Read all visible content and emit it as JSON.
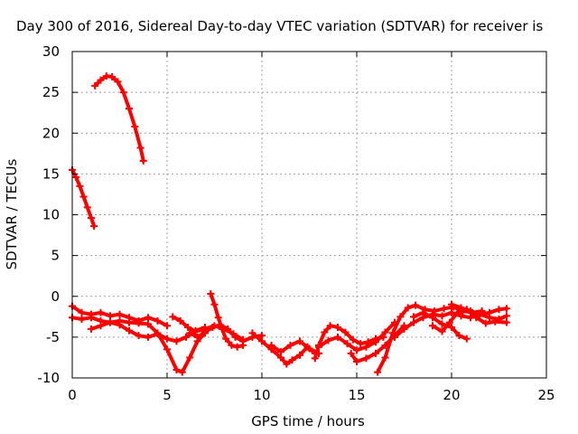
{
  "chart_data": {
    "type": "scatter",
    "title": "Day 300 of 2016, Sidereal Day-to-day VTEC variation (SDTVAR) for receiver is",
    "xlabel": "GPS time / hours",
    "ylabel": "SDTVAR / TECUs",
    "xlim": [
      0,
      25
    ],
    "ylim": [
      -10,
      30
    ],
    "xticks": [
      0,
      5,
      10,
      15,
      20,
      25
    ],
    "yticks": [
      -10,
      -5,
      0,
      5,
      10,
      15,
      20,
      25,
      30
    ],
    "grid": true,
    "point_marker": "plus",
    "series_color": "#ff0000",
    "series": [
      {
        "values": [
          [
            1.2,
            25.8
          ],
          [
            1.5,
            26.5
          ],
          [
            1.8,
            27.0
          ],
          [
            2.1,
            26.9
          ],
          [
            2.4,
            26.3
          ],
          [
            2.7,
            25.0
          ],
          [
            3.0,
            23.0
          ],
          [
            3.3,
            20.8
          ],
          [
            3.6,
            18.2
          ],
          [
            3.75,
            16.6
          ]
        ]
      },
      {
        "values": [
          [
            0.0,
            15.5
          ],
          [
            0.2,
            14.6
          ],
          [
            0.4,
            13.5
          ],
          [
            0.6,
            12.2
          ],
          [
            0.8,
            10.9
          ],
          [
            1.0,
            9.6
          ],
          [
            1.15,
            8.6
          ]
        ]
      },
      {
        "values": [
          [
            0.0,
            -1.2
          ],
          [
            0.5,
            -2.0
          ],
          [
            1.0,
            -2.2
          ],
          [
            1.5,
            -2.0
          ],
          [
            2.0,
            -2.4
          ],
          [
            2.5,
            -2.2
          ],
          [
            3.0,
            -2.6
          ],
          [
            3.5,
            -3.0
          ],
          [
            4.0,
            -2.6
          ],
          [
            4.5,
            -3.0
          ],
          [
            5.0,
            -3.6
          ]
        ]
      },
      {
        "values": [
          [
            0.0,
            -2.6
          ],
          [
            0.5,
            -2.8
          ],
          [
            1.0,
            -2.6
          ],
          [
            1.5,
            -3.0
          ],
          [
            2.0,
            -3.2
          ],
          [
            2.5,
            -3.0
          ],
          [
            3.0,
            -3.2
          ],
          [
            3.5,
            -3.3
          ],
          [
            4.0,
            -3.4
          ],
          [
            4.5,
            -4.5
          ],
          [
            5.0,
            -6.5
          ],
          [
            5.5,
            -9.0
          ],
          [
            5.8,
            -9.3
          ],
          [
            6.2,
            -7.5
          ],
          [
            6.6,
            -5.5
          ],
          [
            7.0,
            -4.5
          ]
        ]
      },
      {
        "values": [
          [
            1.0,
            -4.0
          ],
          [
            1.5,
            -3.6
          ],
          [
            2.0,
            -3.2
          ],
          [
            2.5,
            -3.5
          ],
          [
            3.0,
            -4.2
          ],
          [
            3.5,
            -4.8
          ],
          [
            4.0,
            -5.0
          ],
          [
            4.5,
            -4.6
          ],
          [
            5.0,
            -5.2
          ],
          [
            5.5,
            -5.5
          ],
          [
            6.0,
            -5.0
          ],
          [
            6.5,
            -4.2
          ],
          [
            7.0,
            -3.8
          ]
        ]
      },
      {
        "values": [
          [
            5.3,
            -2.5
          ],
          [
            5.7,
            -3.0
          ],
          [
            6.1,
            -3.8
          ],
          [
            6.5,
            -4.3
          ],
          [
            7.0,
            -4.0
          ],
          [
            7.5,
            -3.6
          ],
          [
            8.0,
            -4.0
          ],
          [
            8.5,
            -4.6
          ],
          [
            9.0,
            -5.3
          ]
        ]
      },
      {
        "values": [
          [
            7.3,
            0.3
          ],
          [
            7.5,
            -1.0
          ],
          [
            7.7,
            -2.6
          ],
          [
            7.9,
            -4.0
          ],
          [
            8.1,
            -5.2
          ],
          [
            8.4,
            -6.0
          ],
          [
            8.7,
            -6.2
          ],
          [
            9.0,
            -6.0
          ]
        ]
      },
      {
        "values": [
          [
            6.2,
            -4.5
          ],
          [
            6.6,
            -5.0
          ],
          [
            7.0,
            -4.4
          ],
          [
            7.4,
            -3.8
          ],
          [
            7.8,
            -3.5
          ],
          [
            8.2,
            -4.0
          ],
          [
            8.6,
            -5.0
          ],
          [
            9.0,
            -5.5
          ],
          [
            9.5,
            -5.0
          ],
          [
            10.0,
            -4.8
          ]
        ]
      },
      {
        "values": [
          [
            9.5,
            -4.5
          ],
          [
            10.0,
            -5.5
          ],
          [
            10.5,
            -6.5
          ],
          [
            11.0,
            -7.5
          ],
          [
            11.3,
            -8.3
          ],
          [
            11.6,
            -7.8
          ],
          [
            12.0,
            -7.2
          ],
          [
            12.4,
            -6.2
          ],
          [
            12.8,
            -7.0
          ]
        ]
      },
      {
        "values": [
          [
            10.5,
            -6.0
          ],
          [
            11.0,
            -6.8
          ],
          [
            11.5,
            -6.0
          ],
          [
            12.0,
            -5.5
          ],
          [
            12.5,
            -6.4
          ],
          [
            13.0,
            -7.0
          ]
        ]
      },
      {
        "values": [
          [
            12.8,
            -7.6
          ],
          [
            13.0,
            -6.0
          ],
          [
            13.3,
            -4.4
          ],
          [
            13.6,
            -3.6
          ],
          [
            14.0,
            -3.8
          ],
          [
            14.4,
            -4.4
          ],
          [
            14.8,
            -5.3
          ],
          [
            15.2,
            -5.8
          ],
          [
            15.6,
            -5.6
          ],
          [
            16.0,
            -5.2
          ],
          [
            16.4,
            -5.0
          ]
        ]
      },
      {
        "values": [
          [
            13.0,
            -6.2
          ],
          [
            13.5,
            -5.4
          ],
          [
            14.0,
            -5.0
          ],
          [
            14.5,
            -5.8
          ],
          [
            15.0,
            -6.6
          ],
          [
            15.5,
            -6.2
          ],
          [
            16.0,
            -5.6
          ],
          [
            16.5,
            -4.4
          ],
          [
            17.0,
            -3.2
          ]
        ]
      },
      {
        "values": [
          [
            14.7,
            -7.0
          ],
          [
            15.0,
            -8.0
          ],
          [
            15.5,
            -7.6
          ],
          [
            16.0,
            -7.0
          ],
          [
            16.5,
            -6.0
          ],
          [
            17.0,
            -4.8
          ],
          [
            17.5,
            -3.6
          ]
        ]
      },
      {
        "values": [
          [
            16.1,
            -9.3
          ],
          [
            16.5,
            -7.5
          ],
          [
            16.9,
            -4.5
          ],
          [
            17.3,
            -2.5
          ],
          [
            17.7,
            -1.4
          ],
          [
            18.1,
            -1.1
          ],
          [
            18.6,
            -1.6
          ],
          [
            19.1,
            -1.8
          ],
          [
            19.6,
            -1.5
          ],
          [
            20.1,
            -1.3
          ],
          [
            20.6,
            -1.8
          ],
          [
            21.1,
            -2.0
          ],
          [
            21.6,
            -1.8
          ]
        ]
      },
      {
        "values": [
          [
            17.0,
            -5.0
          ],
          [
            17.5,
            -4.0
          ],
          [
            18.0,
            -3.2
          ],
          [
            18.5,
            -2.6
          ],
          [
            19.0,
            -2.2
          ],
          [
            19.5,
            -2.4
          ],
          [
            20.0,
            -2.0
          ],
          [
            20.5,
            -2.4
          ],
          [
            21.0,
            -2.6
          ],
          [
            21.5,
            -2.2
          ],
          [
            22.0,
            -2.6
          ],
          [
            22.5,
            -2.8
          ],
          [
            22.9,
            -2.4
          ]
        ]
      },
      {
        "values": [
          [
            18.0,
            -2.5
          ],
          [
            18.5,
            -2.0
          ],
          [
            19.0,
            -2.6
          ],
          [
            19.5,
            -3.4
          ],
          [
            20.0,
            -3.8
          ],
          [
            20.4,
            -4.8
          ],
          [
            20.8,
            -5.2
          ]
        ]
      },
      {
        "values": [
          [
            20.0,
            -1.0
          ],
          [
            20.5,
            -1.4
          ],
          [
            21.0,
            -1.8
          ],
          [
            21.5,
            -2.2
          ],
          [
            22.0,
            -2.0
          ],
          [
            22.5,
            -1.6
          ],
          [
            22.9,
            -1.5
          ]
        ]
      },
      {
        "values": [
          [
            19.0,
            -3.6
          ],
          [
            19.5,
            -4.3
          ],
          [
            19.9,
            -3.2
          ],
          [
            20.3,
            -2.0
          ],
          [
            20.8,
            -1.6
          ],
          [
            21.3,
            -2.6
          ],
          [
            21.8,
            -3.3
          ],
          [
            22.3,
            -3.1
          ],
          [
            22.9,
            -3.2
          ]
        ]
      }
    ]
  }
}
